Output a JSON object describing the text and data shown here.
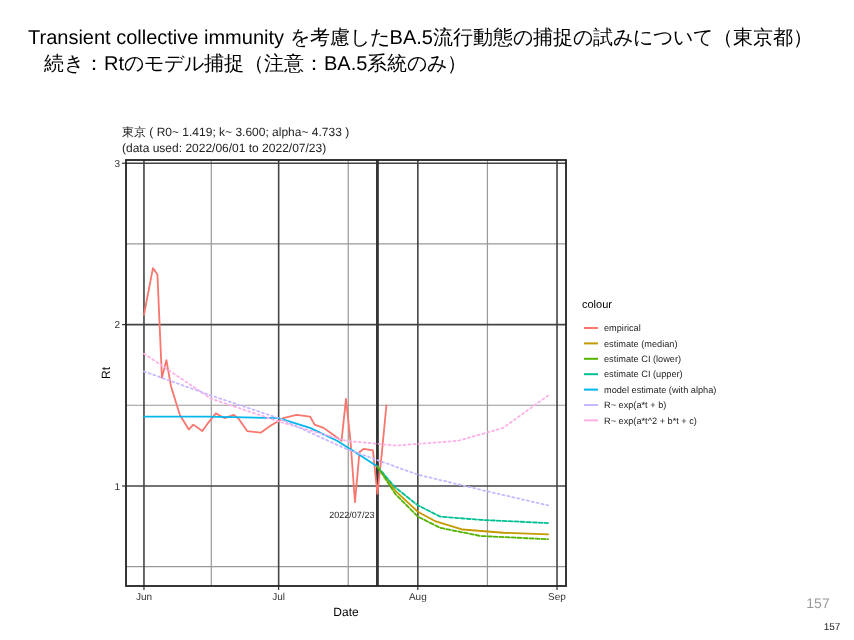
{
  "chart_data": {
    "type": "line",
    "title": "Transient collective immunity を考慮したBA.5流行動態の捕捉の試みについて（東京都）",
    "subtitle": "続き：Rtのモデル捕捉（注意：BA.5系統のみ）",
    "xlabel": "Date",
    "ylabel": "Rt",
    "legend_title": "colour",
    "xlim": [
      "2022-05-28",
      "2022-09-03"
    ],
    "xticks": [
      {
        "value": "2022-06-01",
        "label": "Jun"
      },
      {
        "value": "2022-07-01",
        "label": "Jul"
      },
      {
        "value": "2022-08-01",
        "label": "Aug"
      },
      {
        "value": "2022-09-01",
        "label": "Sep"
      }
    ],
    "ylim": [
      0.38,
      3.02
    ],
    "yticks": [
      1,
      2,
      3
    ],
    "grid": true,
    "legend": "right",
    "series": [
      {
        "name": "empirical",
        "color": "#f8766d",
        "x": [
          "2022-06-01",
          "2022-06-03",
          "2022-06-04",
          "2022-06-05",
          "2022-06-06",
          "2022-06-07",
          "2022-06-09",
          "2022-06-11",
          "2022-06-12",
          "2022-06-14",
          "2022-06-15",
          "2022-06-17",
          "2022-06-19",
          "2022-06-21",
          "2022-06-22",
          "2022-06-24",
          "2022-06-27",
          "2022-06-29",
          "2022-07-02",
          "2022-07-05",
          "2022-07-08",
          "2022-07-09",
          "2022-07-11",
          "2022-07-13",
          "2022-07-15",
          "2022-07-16",
          "2022-07-17",
          "2022-07-18",
          "2022-07-19",
          "2022-07-20",
          "2022-07-22",
          "2022-07-23",
          "2022-07-24",
          "2022-07-25"
        ],
        "values": [
          2.06,
          2.35,
          2.31,
          1.67,
          1.78,
          1.62,
          1.44,
          1.35,
          1.38,
          1.34,
          1.38,
          1.45,
          1.42,
          1.44,
          1.42,
          1.34,
          1.33,
          1.37,
          1.42,
          1.44,
          1.43,
          1.38,
          1.36,
          1.32,
          1.28,
          1.54,
          1.28,
          0.9,
          1.21,
          1.23,
          1.22,
          0.95,
          1.21,
          1.5
        ]
      },
      {
        "name": "estimate (median)",
        "color": "#c49a00",
        "x": [
          "2022-07-23",
          "2022-07-27",
          "2022-08-01",
          "2022-08-05",
          "2022-08-11",
          "2022-08-20",
          "2022-08-30"
        ],
        "values": [
          1.12,
          0.97,
          0.84,
          0.78,
          0.73,
          0.71,
          0.7
        ]
      },
      {
        "name": "estimate CI (lower)",
        "color": "#53b400",
        "line_style": "dashed",
        "x": [
          "2022-07-23",
          "2022-07-27",
          "2022-08-01",
          "2022-08-06",
          "2022-08-15",
          "2022-08-30"
        ],
        "values": [
          1.12,
          0.95,
          0.81,
          0.74,
          0.69,
          0.67
        ]
      },
      {
        "name": "estimate CI (upper)",
        "color": "#00c094",
        "line_style": "dashed",
        "x": [
          "2022-07-23",
          "2022-07-27",
          "2022-08-01",
          "2022-08-06",
          "2022-08-15",
          "2022-08-30"
        ],
        "values": [
          1.12,
          0.99,
          0.88,
          0.81,
          0.79,
          0.77
        ]
      },
      {
        "name": "model estimate (with alpha)",
        "color": "#00b6eb",
        "x": [
          "2022-06-01",
          "2022-06-15",
          "2022-07-01",
          "2022-07-08",
          "2022-07-14",
          "2022-07-18",
          "2022-07-23"
        ],
        "values": [
          1.43,
          1.43,
          1.42,
          1.36,
          1.28,
          1.21,
          1.12
        ]
      },
      {
        "name": "R~ exp(a*t + b)",
        "color": "#c9b8ff",
        "line_style": "dotted",
        "x": [
          "2022-06-01",
          "2022-06-16",
          "2022-07-01",
          "2022-07-16",
          "2022-08-01",
          "2022-08-16",
          "2022-08-30"
        ],
        "values": [
          1.71,
          1.56,
          1.42,
          1.23,
          1.07,
          0.97,
          0.88
        ]
      },
      {
        "name": "R~ exp(a*t^2 + b*t + c)",
        "color": "#fbb0e8",
        "line_style": "dotted",
        "x": [
          "2022-06-01",
          "2022-06-16",
          "2022-07-01",
          "2022-07-16",
          "2022-07-27",
          "2022-08-10",
          "2022-08-20",
          "2022-08-30"
        ],
        "values": [
          1.82,
          1.54,
          1.4,
          1.28,
          1.25,
          1.28,
          1.36,
          1.56
        ]
      }
    ],
    "ref_lines": [
      {
        "axis": "x",
        "value": "2022-07-23",
        "label": "2022/07/23",
        "color": "#333333"
      }
    ],
    "annotations": [
      "東京 ( R0~ 1.419; k~ 3.600; alpha~ 4.733 )",
      "(data used: 2022/06/01 to 2022/07/23)",
      "157",
      "157"
    ]
  }
}
